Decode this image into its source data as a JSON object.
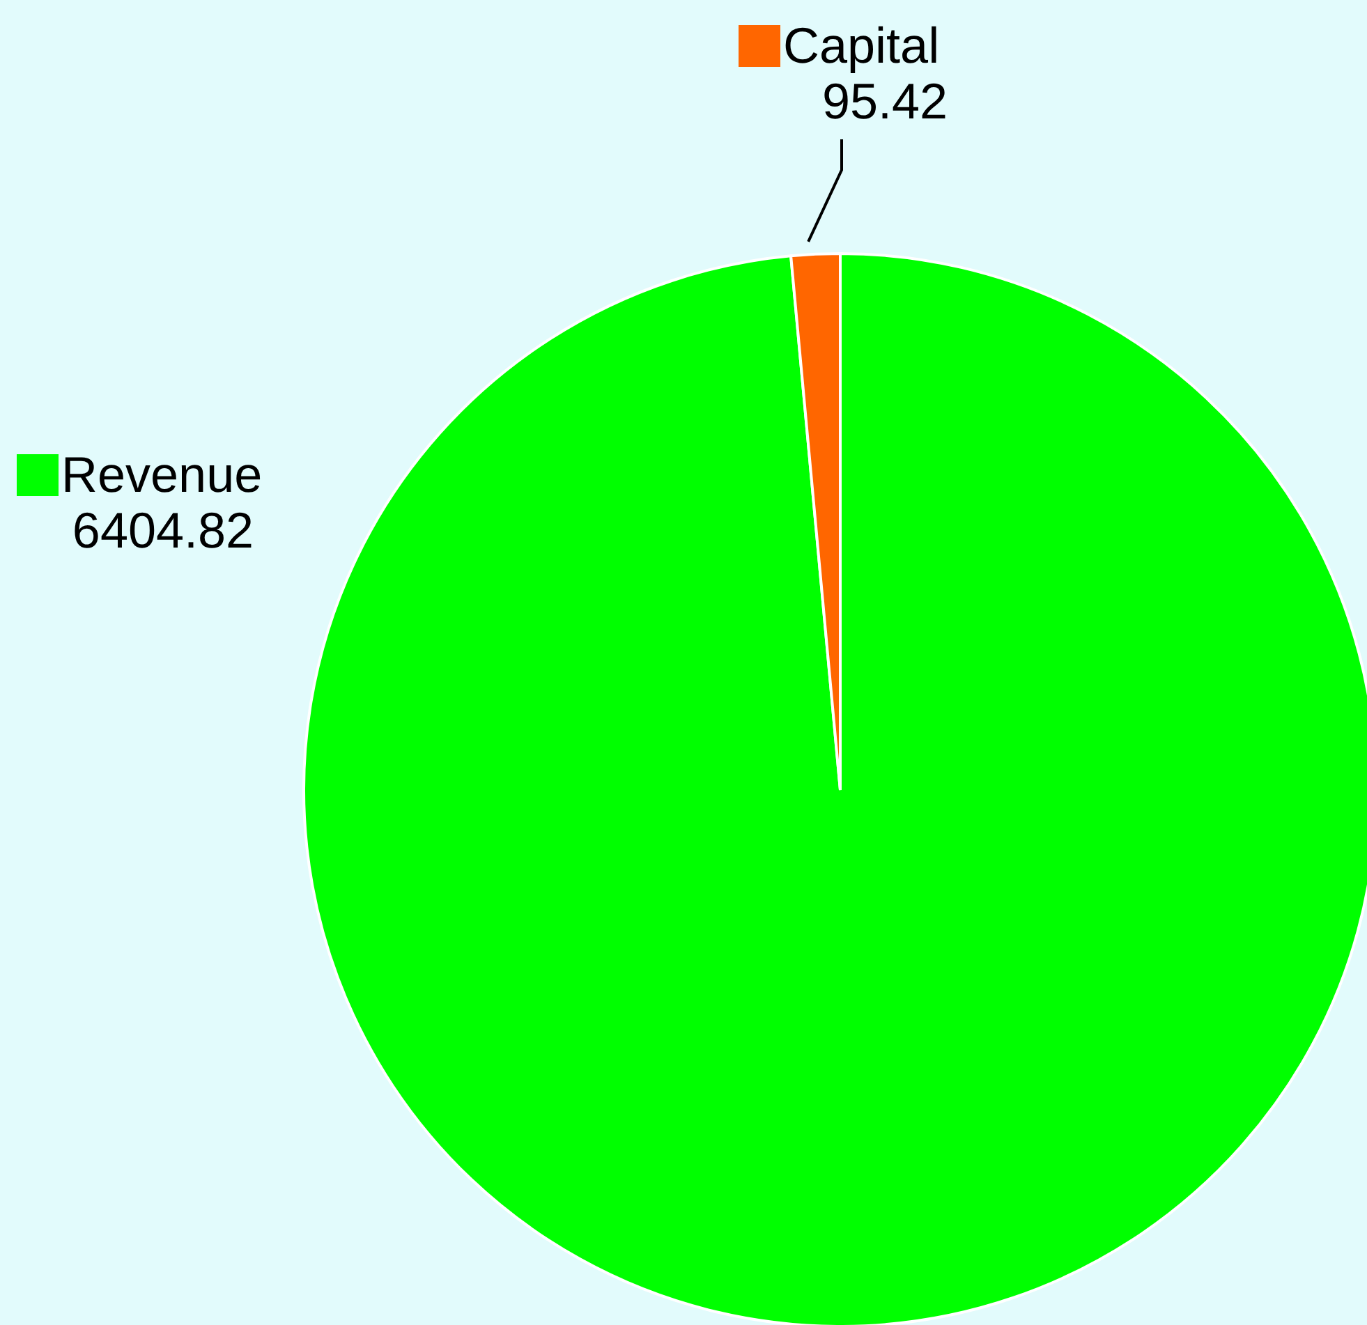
{
  "chart_data": {
    "type": "pie",
    "categories": [
      "Revenue",
      "Capital"
    ],
    "values": [
      6404.82,
      95.42
    ],
    "colors": [
      "#00ff00",
      "#ff6600"
    ],
    "data_labels": true,
    "legend": "top left"
  }
}
